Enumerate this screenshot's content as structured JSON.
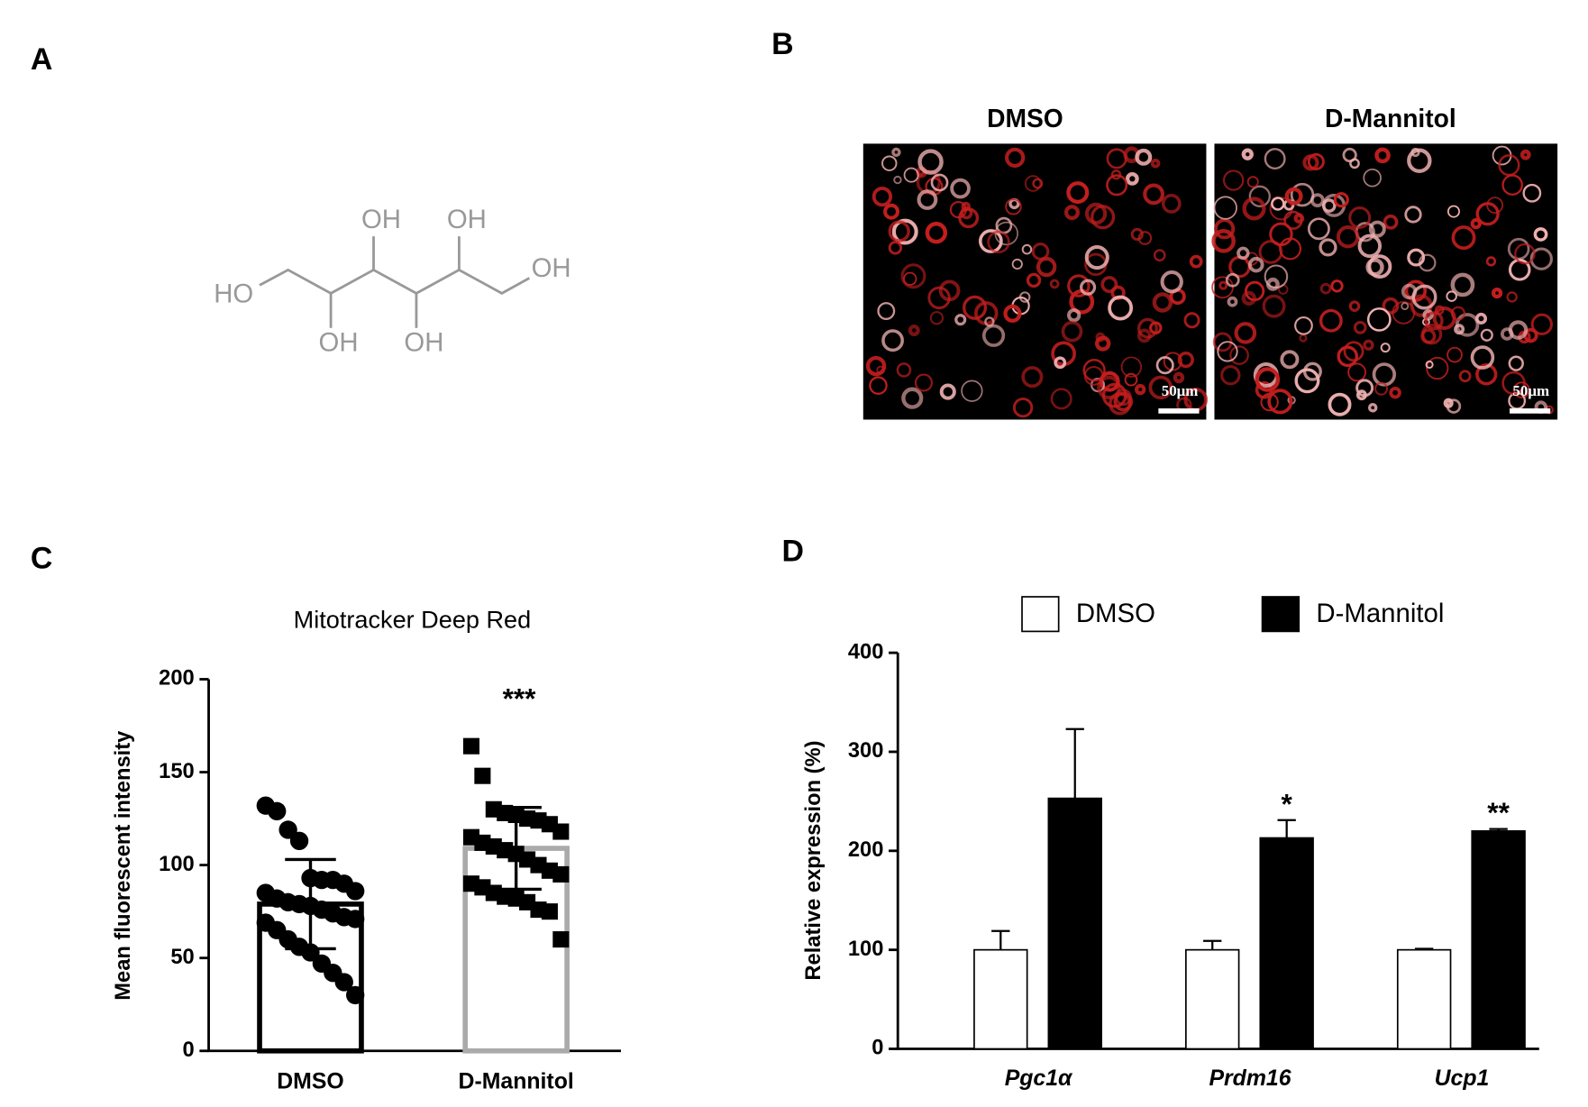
{
  "panel_labels": [
    "A",
    "B",
    "C",
    "D"
  ],
  "structure": {
    "labels": [
      "HO",
      "OH",
      "OH",
      "OH",
      "OH",
      "OH"
    ]
  },
  "micrographs": {
    "titles": [
      "DMSO",
      "D-Mannitol"
    ],
    "scale_bar": "50μm"
  },
  "chart_data": [
    {
      "type": "scatter_bar",
      "title": "Mitotracker Deep Red",
      "y_label": "Mean fluorescent intensity",
      "categories": [
        "DMSO",
        "D-Mannitol"
      ],
      "values": [
        79,
        109
      ],
      "errors": [
        24,
        22
      ],
      "colors": [
        "#000000",
        "#aaaaaa"
      ],
      "annotation": "***",
      "points": [
        [
          132,
          129,
          119,
          113,
          93,
          92,
          92,
          90,
          86,
          85,
          82,
          80,
          79,
          78,
          76,
          74,
          72,
          71,
          69,
          65,
          60,
          56,
          53,
          47,
          42,
          37,
          30
        ],
        [
          164,
          148,
          130,
          128,
          127,
          125,
          124,
          122,
          118,
          115,
          112,
          110,
          108,
          106,
          103,
          100,
          97,
          95,
          90,
          88,
          85,
          83,
          82,
          80,
          76,
          75,
          60
        ]
      ],
      "ylim": [
        0,
        200
      ],
      "yticks": [
        0,
        50,
        100,
        150,
        200
      ]
    },
    {
      "type": "grouped_bar",
      "y_label": "Relative expression (%)",
      "categories": [
        "Pgc1α",
        "Prdm16",
        "Ucp1"
      ],
      "series": [
        {
          "name": "DMSO",
          "color": "#ffffff",
          "values": [
            100,
            100,
            100
          ],
          "errors": [
            19,
            9,
            1
          ]
        },
        {
          "name": "D-Mannitol",
          "color": "#000000",
          "values": [
            253,
            213,
            220
          ],
          "errors": [
            70,
            18,
            2
          ],
          "significance": [
            null,
            "*",
            "**"
          ]
        }
      ],
      "ylim": [
        0,
        400
      ],
      "yticks": [
        0,
        100,
        200,
        300,
        400
      ],
      "legend": "top"
    }
  ]
}
